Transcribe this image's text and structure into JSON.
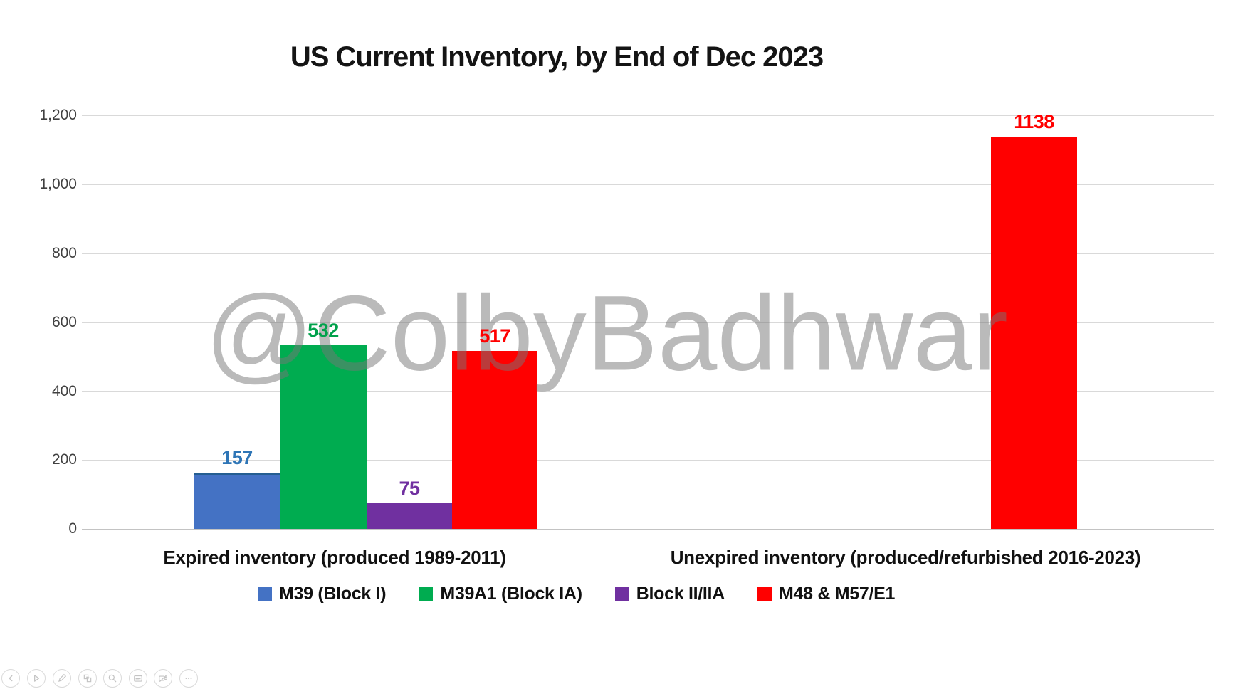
{
  "chart_data": {
    "type": "bar",
    "title": "US Current Inventory, by End of Dec 2023",
    "watermark": "@ColbyBadhwar",
    "categories": [
      "Expired inventory (produced 1989-2011)",
      "Unexpired inventory (produced/refurbished 2016-2023)"
    ],
    "series": [
      {
        "name": "M39 (Block I)",
        "color": "#4472C4",
        "values": [
          157,
          null
        ]
      },
      {
        "name": "M39A1 (Block IA)",
        "color": "#00AC50",
        "values": [
          532,
          null
        ]
      },
      {
        "name": "Block II/IIA",
        "color": "#7030A0",
        "values": [
          75,
          null
        ]
      },
      {
        "name": "M48 & M57/E1",
        "color": "#FF0000",
        "values": [
          517,
          1138
        ]
      }
    ],
    "bars": [
      {
        "series": "M39 (Block I)",
        "category": 0,
        "value": 157,
        "label": "157",
        "color": "#4472C4",
        "label_color": "#2E75B6",
        "border_top": "#255E91"
      },
      {
        "series": "M39A1 (Block IA)",
        "category": 0,
        "value": 532,
        "label": "532",
        "color": "#00AC50",
        "label_color": "#00A14B"
      },
      {
        "series": "Block II/IIA",
        "category": 0,
        "value": 75,
        "label": "75",
        "color": "#7030A0",
        "label_color": "#7030A0"
      },
      {
        "series": "M48 & M57/E1",
        "category": 0,
        "value": 517,
        "label": "517",
        "color": "#FF0000",
        "label_color": "#FF0000"
      },
      {
        "series": "M48 & M57/E1",
        "category": 1,
        "value": 1138,
        "label": "1138",
        "color": "#FF0000",
        "label_color": "#FF0000"
      }
    ],
    "ylim": [
      0,
      1200
    ],
    "yticks": [
      "1,200",
      "1,000",
      "800",
      "600",
      "400",
      "200",
      "0"
    ],
    "grid": true,
    "legend_position": "bottom",
    "colors": {
      "gridline": "#D9D9D9",
      "axis_line": "#C3C3C3",
      "tick_label": "#404040",
      "watermark": "#767676",
      "title": "#141414"
    }
  },
  "toolbar": {
    "buttons": [
      {
        "name": "previous-slide",
        "icon": "chevron-left-icon"
      },
      {
        "name": "next-slide",
        "icon": "play-icon"
      },
      {
        "name": "pen",
        "icon": "pen-icon"
      },
      {
        "name": "see-all-slides",
        "icon": "slides-grid-icon"
      },
      {
        "name": "zoom",
        "icon": "magnifier-icon"
      },
      {
        "name": "captions",
        "icon": "closed-caption-icon"
      },
      {
        "name": "toggle-camera",
        "icon": "camera-off-icon"
      },
      {
        "name": "more-options",
        "icon": "ellipsis-icon"
      }
    ]
  }
}
